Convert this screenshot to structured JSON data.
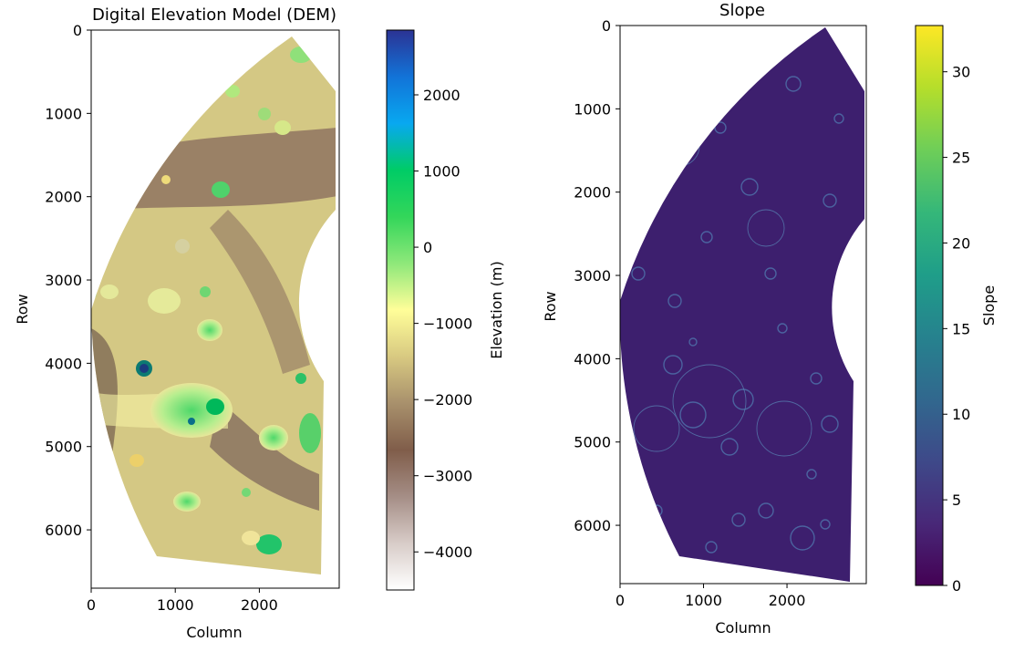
{
  "chart_data": [
    {
      "type": "heatmap",
      "title": "Digital Elevation Model (DEM)",
      "xlabel": "Column",
      "ylabel": "Row",
      "xlim": [
        0,
        2950
      ],
      "ylim": [
        6700,
        0
      ],
      "x_ticks": [
        0,
        1000,
        2000
      ],
      "y_ticks": [
        0,
        1000,
        2000,
        3000,
        4000,
        5000,
        6000
      ],
      "colormap": "terrain",
      "colorbar": {
        "label": "Elevation (m)",
        "range": [
          -4500,
          2850
        ],
        "ticks": [
          2000,
          1000,
          0,
          -1000,
          -2000,
          -3000,
          -4000
        ],
        "tick_labels": [
          "2000",
          "1000",
          "0",
          "−1000",
          "−2000",
          "−3000",
          "−4000"
        ],
        "stops": [
          "#2b3394",
          "#1273d8",
          "#08a8f0",
          "#00cc66",
          "#33d65a",
          "#8ee87a",
          "#fffe99",
          "#d8c981",
          "#a8906c",
          "#805d4a",
          "#a58e86",
          "#d8ccc8",
          "#ffffff"
        ]
      }
    },
    {
      "type": "heatmap",
      "title": "Slope",
      "xlabel": "Column",
      "ylabel": "Row",
      "xlim": [
        0,
        2950
      ],
      "ylim": [
        6700,
        0
      ],
      "x_ticks": [
        0,
        1000,
        2000
      ],
      "y_ticks": [
        0,
        1000,
        2000,
        3000,
        4000,
        5000,
        6000
      ],
      "colormap": "viridis",
      "colorbar": {
        "label": "Slope",
        "range": [
          0,
          32.7
        ],
        "ticks": [
          30,
          25,
          20,
          15,
          10,
          5,
          0
        ],
        "tick_labels": [
          "30",
          "25",
          "20",
          "15",
          "10",
          "5",
          "0"
        ],
        "stops": [
          "#fde725",
          "#b5de2b",
          "#6ece58",
          "#35b779",
          "#1f9e89",
          "#26828e",
          "#31688e",
          "#3e4989",
          "#482878",
          "#440154"
        ]
      }
    }
  ]
}
